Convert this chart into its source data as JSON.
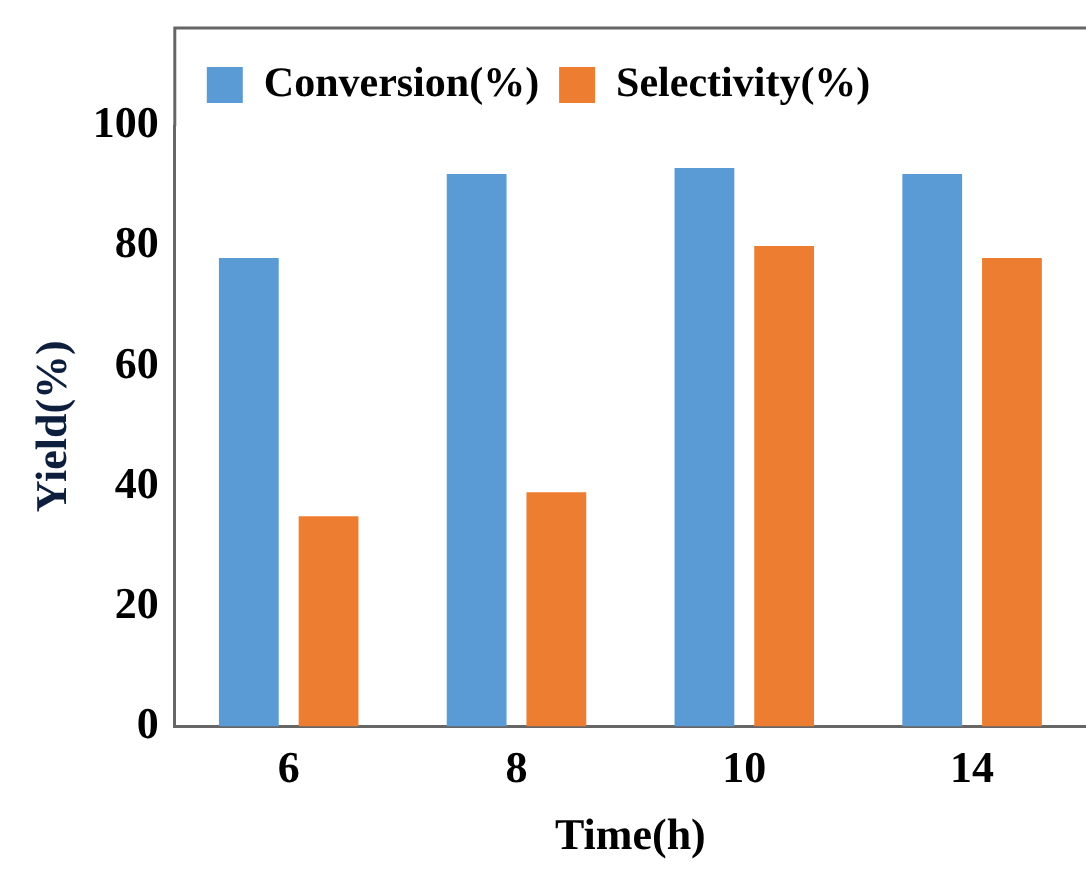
{
  "chart_data": {
    "type": "bar",
    "xlabel": "Time(h)",
    "ylabel": "Yield(%)",
    "categories": [
      "6",
      "8",
      "10",
      "14"
    ],
    "series": [
      {
        "name": "Conversion(%)",
        "color": "#5b9bd5",
        "values": [
          78,
          92,
          93,
          92
        ]
      },
      {
        "name": "Selectivity(%)",
        "color": "#ed7d31",
        "values": [
          35,
          39,
          80,
          78
        ]
      }
    ],
    "ylim": [
      0,
      100
    ],
    "yticks": [
      0,
      20,
      40,
      60,
      80,
      100
    ],
    "grid": false,
    "legend": "top"
  }
}
